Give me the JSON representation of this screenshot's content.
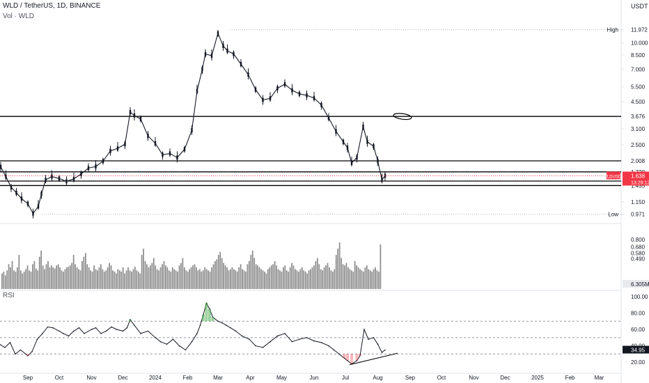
{
  "header": {
    "symbol_line": "WLD / TetherUS, 1D, BINANCE",
    "volume_label": "Vol · WLD",
    "rsi_label": "RSI",
    "currency": "USDT"
  },
  "colors": {
    "up": "#131722",
    "down": "#131722",
    "hline": "#000000",
    "grid": "#e0e3eb",
    "axis_text": "#131722",
    "rsi_line": "#131722",
    "rsi_overbought_fill": "#4caf50",
    "rsi_oversold_fill": "#f23645",
    "current_price_badge": "#f23645",
    "volume": "#8a8a8a"
  },
  "chart_data": [
    {
      "type": "line",
      "title": "WLD / TetherUS, 1D, BINANCE",
      "ylabel": "USDT",
      "scale": "log",
      "ylim": [
        0.88,
        13.5
      ],
      "y_ticks": [
        "11.972",
        "10.000",
        "8.500",
        "7.000",
        "5.500",
        "4.500",
        "3.676",
        "3.100",
        "2.500",
        "2.008",
        "1.728",
        "1.638",
        "1.525",
        "1.435",
        "1.150",
        "0.971"
      ],
      "x_tick_labels": [
        "Sep",
        "Oct",
        "Nov",
        "Dec",
        "2024",
        "Feb",
        "Mar",
        "Apr",
        "May",
        "Jun",
        "Jul",
        "Aug",
        "Sep",
        "Oct",
        "Nov",
        "Dec",
        "2025",
        "Feb",
        "Mar"
      ],
      "x_tick_dates": [
        "2023-09-01",
        "2023-10-01",
        "2023-11-01",
        "2023-12-01",
        "2024-01-01",
        "2024-02-01",
        "2024-03-01",
        "2024-04-01",
        "2024-05-01",
        "2024-06-01",
        "2024-07-01",
        "2024-08-01",
        "2024-09-01",
        "2024-10-01",
        "2024-11-01",
        "2024-12-01",
        "2025-01-01",
        "2025-02-01",
        "2025-03-01"
      ],
      "series": [
        {
          "name": "WLDUSDT",
          "x": [
            "2023-08-01",
            "2023-08-06",
            "2023-08-11",
            "2023-08-16",
            "2023-08-21",
            "2023-08-26",
            "2023-09-01",
            "2023-09-06",
            "2023-09-11",
            "2023-09-14",
            "2023-09-18",
            "2023-09-24",
            "2023-10-01",
            "2023-10-08",
            "2023-10-15",
            "2023-10-22",
            "2023-10-29",
            "2023-11-05",
            "2023-11-12",
            "2023-11-19",
            "2023-11-26",
            "2023-12-03",
            "2023-12-08",
            "2023-12-12",
            "2023-12-18",
            "2023-12-25",
            "2024-01-01",
            "2024-01-08",
            "2024-01-15",
            "2024-01-22",
            "2024-01-29",
            "2024-02-05",
            "2024-02-10",
            "2024-02-15",
            "2024-02-18",
            "2024-02-24",
            "2024-03-01",
            "2024-03-06",
            "2024-03-10",
            "2024-03-16",
            "2024-03-23",
            "2024-03-30",
            "2024-04-06",
            "2024-04-13",
            "2024-04-20",
            "2024-04-27",
            "2024-05-04",
            "2024-05-11",
            "2024-05-18",
            "2024-05-25",
            "2024-06-01",
            "2024-06-08",
            "2024-06-15",
            "2024-06-22",
            "2024-06-29",
            "2024-07-03",
            "2024-07-07",
            "2024-07-12",
            "2024-07-18",
            "2024-07-22",
            "2024-07-28",
            "2024-08-01",
            "2024-08-05",
            "2024-08-08"
          ],
          "values": [
            2.0,
            1.85,
            1.62,
            1.4,
            1.3,
            1.2,
            1.12,
            0.98,
            1.08,
            1.28,
            1.55,
            1.62,
            1.58,
            1.52,
            1.57,
            1.68,
            1.82,
            1.86,
            2.0,
            2.3,
            2.38,
            2.52,
            3.9,
            3.72,
            3.55,
            2.82,
            2.55,
            2.18,
            2.22,
            2.1,
            2.35,
            3.05,
            5.2,
            7.0,
            8.6,
            8.4,
            11.4,
            9.6,
            9.0,
            8.6,
            7.5,
            6.5,
            5.3,
            4.6,
            4.7,
            5.4,
            5.7,
            5.25,
            5.0,
            4.9,
            4.72,
            4.3,
            3.6,
            3.0,
            2.6,
            2.4,
            1.95,
            2.1,
            3.2,
            2.6,
            2.45,
            2.0,
            1.55,
            1.64
          ]
        }
      ],
      "horizontal_levels": [
        3.676,
        2.008,
        1.728,
        1.525,
        1.435
      ],
      "labels": {
        "high": "High",
        "high_value": "11.972",
        "low": "Low",
        "low_value": "0.971",
        "last_symbol": "WLDUSDT",
        "last_price": "1.638",
        "countdown": "13:29:12"
      }
    },
    {
      "type": "bar",
      "title": "Vol · WLD",
      "y_ticks": [
        "0.800",
        "0.680",
        "0.580",
        "0.490"
      ],
      "last_value_label": "6.305M",
      "values": [
        0.25,
        0.28,
        0.22,
        0.3,
        0.4,
        0.35,
        0.45,
        0.3,
        0.28,
        0.35,
        0.55,
        0.3,
        0.25,
        0.28,
        0.32,
        0.38,
        0.3,
        0.28,
        0.4,
        0.45,
        0.33,
        0.3,
        0.52,
        0.62,
        0.38,
        0.32,
        0.4,
        0.45,
        0.35,
        0.38,
        0.35,
        0.33,
        0.38,
        0.4,
        0.35,
        0.3,
        0.28,
        0.32,
        0.35,
        0.36,
        0.38,
        0.42,
        0.55,
        0.4,
        0.35,
        0.32,
        0.3,
        0.45,
        0.52,
        0.58,
        0.4,
        0.35,
        0.3,
        0.28,
        0.38,
        0.32,
        0.3,
        0.35,
        0.4,
        0.32,
        0.28,
        0.3,
        0.35,
        0.42,
        0.38,
        0.3,
        0.28,
        0.25,
        0.32,
        0.3,
        0.28,
        0.35,
        0.25,
        0.3,
        0.35,
        0.3,
        0.28,
        0.32,
        0.36,
        0.3,
        0.28,
        0.25,
        0.55,
        0.65,
        0.45,
        0.4,
        0.35,
        0.38,
        0.42,
        0.5,
        0.38,
        0.32,
        0.3,
        0.35,
        0.4,
        0.45,
        0.38,
        0.35,
        0.3,
        0.28,
        0.35,
        0.32,
        0.3,
        0.28,
        0.38,
        0.42,
        0.5,
        0.35,
        0.3,
        0.28,
        0.32,
        0.35,
        0.38,
        0.4,
        0.35,
        0.3,
        0.32,
        0.28,
        0.3,
        0.35,
        0.32,
        0.3,
        0.28,
        0.35,
        0.4,
        0.45,
        0.48,
        0.55,
        0.6,
        0.5,
        0.42,
        0.38,
        0.35,
        0.3,
        0.32,
        0.35,
        0.32,
        0.3,
        0.28,
        0.35,
        0.4,
        0.32,
        0.3,
        0.28,
        0.4,
        0.45,
        0.55,
        0.62,
        0.5,
        0.4,
        0.38,
        0.35,
        0.32,
        0.3,
        0.28,
        0.25,
        0.32,
        0.35,
        0.38,
        0.4,
        0.45,
        0.38,
        0.32,
        0.3,
        0.28,
        0.35,
        0.38,
        0.3,
        0.28,
        0.35,
        0.42,
        0.38,
        0.32,
        0.3,
        0.28,
        0.32,
        0.35,
        0.3,
        0.28,
        0.25,
        0.3,
        0.32,
        0.35,
        0.38,
        0.45,
        0.5,
        0.4,
        0.32,
        0.3,
        0.35,
        0.38,
        0.42,
        0.35,
        0.3,
        0.28,
        0.32,
        0.55,
        0.65,
        0.75,
        0.5,
        0.4,
        0.38,
        0.42,
        0.35,
        0.32,
        0.3,
        0.28,
        0.45,
        0.38,
        0.35,
        0.32,
        0.3,
        0.28,
        0.35,
        0.38,
        0.32,
        0.3,
        0.28,
        0.32,
        0.35,
        0.3,
        0.28,
        0.72
      ]
    },
    {
      "type": "line",
      "title": "RSI",
      "ylim": [
        10,
        105
      ],
      "y_ticks": [
        "100.00",
        "80.00",
        "60.00",
        "40.00",
        "20.00"
      ],
      "levels": [
        70,
        50,
        30
      ],
      "last_value_label": "34.95",
      "x": [
        "2023-08-01",
        "2023-08-05",
        "2023-08-10",
        "2023-08-15",
        "2023-08-20",
        "2023-08-25",
        "2023-09-01",
        "2023-09-05",
        "2023-09-10",
        "2023-09-15",
        "2023-09-20",
        "2023-09-25",
        "2023-10-01",
        "2023-10-05",
        "2023-10-10",
        "2023-10-15",
        "2023-10-20",
        "2023-10-25",
        "2023-11-01",
        "2023-11-05",
        "2023-11-10",
        "2023-11-15",
        "2023-11-20",
        "2023-11-25",
        "2023-12-01",
        "2023-12-05",
        "2023-12-08",
        "2023-12-12",
        "2023-12-18",
        "2023-12-25",
        "2024-01-01",
        "2024-01-06",
        "2024-01-12",
        "2024-01-18",
        "2024-01-24",
        "2024-01-30",
        "2024-02-05",
        "2024-02-10",
        "2024-02-13",
        "2024-02-16",
        "2024-02-19",
        "2024-02-22",
        "2024-02-25",
        "2024-03-01",
        "2024-03-05",
        "2024-03-09",
        "2024-03-13",
        "2024-03-18",
        "2024-03-24",
        "2024-03-31",
        "2024-04-06",
        "2024-04-13",
        "2024-04-20",
        "2024-04-27",
        "2024-05-04",
        "2024-05-11",
        "2024-05-18",
        "2024-05-25",
        "2024-06-01",
        "2024-06-08",
        "2024-06-15",
        "2024-06-20",
        "2024-06-25",
        "2024-06-30",
        "2024-07-03",
        "2024-07-07",
        "2024-07-12",
        "2024-07-15",
        "2024-07-19",
        "2024-07-23",
        "2024-07-28",
        "2024-08-01",
        "2024-08-05",
        "2024-08-08"
      ],
      "values": [
        45,
        42,
        38,
        44,
        30,
        35,
        28,
        33,
        48,
        55,
        63,
        62,
        58,
        55,
        52,
        58,
        62,
        55,
        60,
        62,
        55,
        58,
        63,
        60,
        58,
        62,
        72,
        65,
        55,
        58,
        50,
        45,
        42,
        48,
        40,
        35,
        45,
        55,
        65,
        78,
        92,
        85,
        75,
        70,
        68,
        65,
        62,
        58,
        52,
        48,
        40,
        38,
        45,
        52,
        55,
        45,
        48,
        50,
        46,
        44,
        40,
        35,
        30,
        25,
        22,
        18,
        22,
        28,
        60,
        48,
        50,
        42,
        32,
        35
      ],
      "trendline": {
        "from": [
          "2024-07-05",
          17
        ],
        "to": [
          "2024-08-20",
          31
        ]
      }
    }
  ]
}
